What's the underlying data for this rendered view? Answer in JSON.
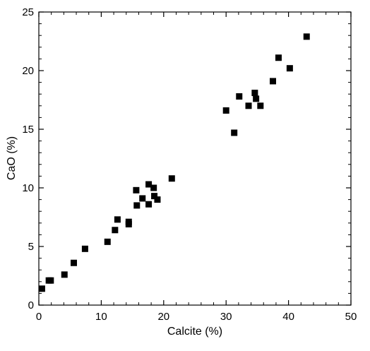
{
  "chart_data": {
    "type": "scatter",
    "title": "",
    "xlabel": "Calcite (%)",
    "ylabel": "CaO (%)",
    "xlim": [
      0,
      50
    ],
    "ylim": [
      0,
      25
    ],
    "x_ticks": [
      0,
      10,
      20,
      30,
      40,
      50
    ],
    "y_ticks": [
      0,
      5,
      10,
      15,
      20,
      25
    ],
    "x_tick_labels": [
      "0",
      "10",
      "20",
      "30",
      "40",
      "50"
    ],
    "y_tick_labels": [
      "0",
      "5",
      "10",
      "15",
      "20",
      "25"
    ],
    "grid": false,
    "marker": "square",
    "marker_color": "#000000",
    "series": [
      {
        "points": [
          [
            0.5,
            1.4
          ],
          [
            1.6,
            2.1
          ],
          [
            1.9,
            2.1
          ],
          [
            4.1,
            2.6
          ],
          [
            5.6,
            3.6
          ],
          [
            7.4,
            4.8
          ],
          [
            11.0,
            5.4
          ],
          [
            12.2,
            6.4
          ],
          [
            12.6,
            7.3
          ],
          [
            14.4,
            6.9
          ],
          [
            14.4,
            7.1
          ],
          [
            15.6,
            9.8
          ],
          [
            15.7,
            8.5
          ],
          [
            16.6,
            9.1
          ],
          [
            17.6,
            10.3
          ],
          [
            17.6,
            8.6
          ],
          [
            18.4,
            10.0
          ],
          [
            18.5,
            9.3
          ],
          [
            19.0,
            9.0
          ],
          [
            21.3,
            10.8
          ],
          [
            30.0,
            16.6
          ],
          [
            31.3,
            14.7
          ],
          [
            32.1,
            17.8
          ],
          [
            33.6,
            17.0
          ],
          [
            34.6,
            18.1
          ],
          [
            34.8,
            17.6
          ],
          [
            35.5,
            17.0
          ],
          [
            37.5,
            19.1
          ],
          [
            38.4,
            21.1
          ],
          [
            40.2,
            20.2
          ],
          [
            42.9,
            22.9
          ]
        ]
      }
    ]
  }
}
